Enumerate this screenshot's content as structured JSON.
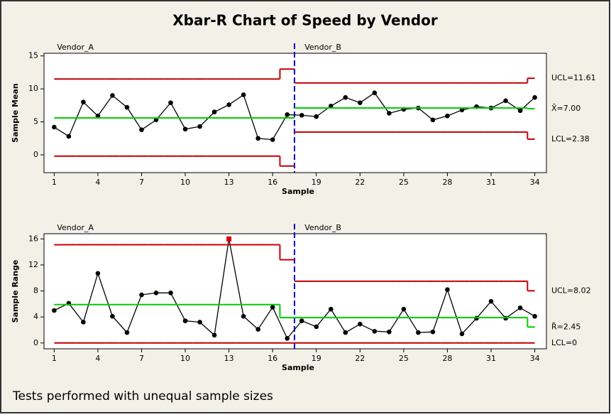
{
  "title": "Xbar-R Chart of Speed by Vendor",
  "footnote": "Tests performed with unequal sample sizes",
  "chart_data": [
    {
      "type": "line",
      "xlabel": "Sample",
      "ylabel": "Sample Mean",
      "x": [
        1,
        2,
        3,
        4,
        5,
        6,
        7,
        8,
        9,
        10,
        11,
        12,
        13,
        14,
        15,
        16,
        17,
        18,
        19,
        20,
        21,
        22,
        23,
        24,
        25,
        26,
        27,
        28,
        29,
        30,
        31,
        32,
        33,
        34
      ],
      "xlim": [
        0.3,
        34.8
      ],
      "xticks": [
        1,
        4,
        7,
        10,
        13,
        16,
        19,
        22,
        25,
        28,
        31,
        34
      ],
      "ylim": [
        -2.7,
        15.4
      ],
      "yticks": [
        0,
        5,
        10,
        15
      ],
      "stages": [
        {
          "name": "Vendor_A",
          "start": 1
        },
        {
          "name": "Vendor_B",
          "start": 18
        }
      ],
      "series": [
        {
          "color": "#000000",
          "values": [
            4.2,
            2.8,
            8.0,
            5.9,
            9.0,
            7.2,
            3.8,
            5.3,
            7.9,
            3.9,
            4.3,
            6.5,
            7.6,
            9.1,
            2.5,
            2.3,
            6.1,
            6.0,
            5.8,
            7.4,
            8.7,
            7.9,
            9.4,
            6.3,
            6.9,
            7.1,
            5.3,
            5.9,
            6.8,
            7.3,
            7.1,
            8.2,
            6.7,
            8.7
          ]
        },
        {
          "name": "UCL=11.61",
          "color": "#c00000",
          "step": true,
          "values": [
            11.5,
            11.5,
            11.5,
            11.5,
            11.5,
            11.5,
            11.5,
            11.5,
            11.5,
            11.5,
            11.5,
            11.5,
            11.5,
            11.5,
            11.5,
            11.5,
            13.0,
            10.9,
            10.9,
            10.9,
            10.9,
            10.9,
            10.9,
            10.9,
            10.9,
            10.9,
            10.9,
            10.9,
            10.9,
            10.9,
            10.9,
            10.9,
            10.9,
            11.61
          ]
        },
        {
          "name": "X̄=7.00",
          "color": "#00cc00",
          "step": true,
          "values": [
            5.6,
            5.6,
            5.6,
            5.6,
            5.6,
            5.6,
            5.6,
            5.6,
            5.6,
            5.6,
            5.6,
            5.6,
            5.6,
            5.6,
            5.6,
            5.6,
            5.6,
            7.1,
            7.1,
            7.1,
            7.1,
            7.1,
            7.1,
            7.1,
            7.1,
            7.1,
            7.1,
            7.1,
            7.1,
            7.1,
            7.1,
            7.1,
            7.1,
            7.0
          ]
        },
        {
          "name": "LCL=2.38",
          "color": "#c00000",
          "step": true,
          "values": [
            -0.2,
            -0.2,
            -0.2,
            -0.2,
            -0.2,
            -0.2,
            -0.2,
            -0.2,
            -0.2,
            -0.2,
            -0.2,
            -0.2,
            -0.2,
            -0.2,
            -0.2,
            -0.2,
            -1.7,
            3.45,
            3.45,
            3.45,
            3.45,
            3.45,
            3.45,
            3.45,
            3.45,
            3.45,
            3.45,
            3.45,
            3.45,
            3.45,
            3.45,
            3.45,
            3.45,
            2.38
          ]
        }
      ]
    },
    {
      "type": "line",
      "xlabel": "Sample",
      "ylabel": "Sample Range",
      "x": [
        1,
        2,
        3,
        4,
        5,
        6,
        7,
        8,
        9,
        10,
        11,
        12,
        13,
        14,
        15,
        16,
        17,
        18,
        19,
        20,
        21,
        22,
        23,
        24,
        25,
        26,
        27,
        28,
        29,
        30,
        31,
        32,
        33,
        34
      ],
      "xlim": [
        0.3,
        34.8
      ],
      "xticks": [
        1,
        4,
        7,
        10,
        13,
        16,
        19,
        22,
        25,
        28,
        31,
        34
      ],
      "ylim": [
        -0.9,
        16.8
      ],
      "yticks": [
        0,
        4,
        8,
        12,
        16
      ],
      "stages": [
        {
          "name": "Vendor_A",
          "start": 1
        },
        {
          "name": "Vendor_B",
          "start": 18
        }
      ],
      "series": [
        {
          "color": "#000000",
          "flag_color": "#dd0000",
          "flagged": [
            13
          ],
          "values": [
            5.0,
            6.1,
            3.2,
            10.7,
            4.1,
            1.6,
            7.4,
            7.7,
            7.7,
            3.4,
            3.2,
            1.2,
            16.0,
            4.1,
            2.1,
            5.5,
            0.7,
            3.4,
            2.5,
            5.2,
            1.6,
            2.9,
            1.8,
            1.7,
            5.2,
            1.6,
            1.7,
            8.2,
            1.4,
            3.8,
            6.4,
            3.8,
            5.4,
            4.1
          ]
        },
        {
          "name": "UCL=8.02",
          "color": "#c00000",
          "step": true,
          "values": [
            15.1,
            15.1,
            15.1,
            15.1,
            15.1,
            15.1,
            15.1,
            15.1,
            15.1,
            15.1,
            15.1,
            15.1,
            15.1,
            15.1,
            15.1,
            15.1,
            12.8,
            9.5,
            9.5,
            9.5,
            9.5,
            9.5,
            9.5,
            9.5,
            9.5,
            9.5,
            9.5,
            9.5,
            9.5,
            9.5,
            9.5,
            9.5,
            9.5,
            8.02
          ]
        },
        {
          "name": "R̄=2.45",
          "color": "#00cc00",
          "step": true,
          "values": [
            5.9,
            5.9,
            5.9,
            5.9,
            5.9,
            5.9,
            5.9,
            5.9,
            5.9,
            5.9,
            5.9,
            5.9,
            5.9,
            5.9,
            5.9,
            5.9,
            3.9,
            3.9,
            3.9,
            3.9,
            3.9,
            3.9,
            3.9,
            3.9,
            3.9,
            3.9,
            3.9,
            3.9,
            3.9,
            3.9,
            3.9,
            3.9,
            3.9,
            2.45
          ]
        },
        {
          "name": "LCL=0",
          "color": "#c00000",
          "step": true,
          "values": [
            0,
            0,
            0,
            0,
            0,
            0,
            0,
            0,
            0,
            0,
            0,
            0,
            0,
            0,
            0,
            0,
            0,
            0,
            0,
            0,
            0,
            0,
            0,
            0,
            0,
            0,
            0,
            0,
            0,
            0,
            0,
            0,
            0,
            0
          ]
        }
      ]
    }
  ]
}
